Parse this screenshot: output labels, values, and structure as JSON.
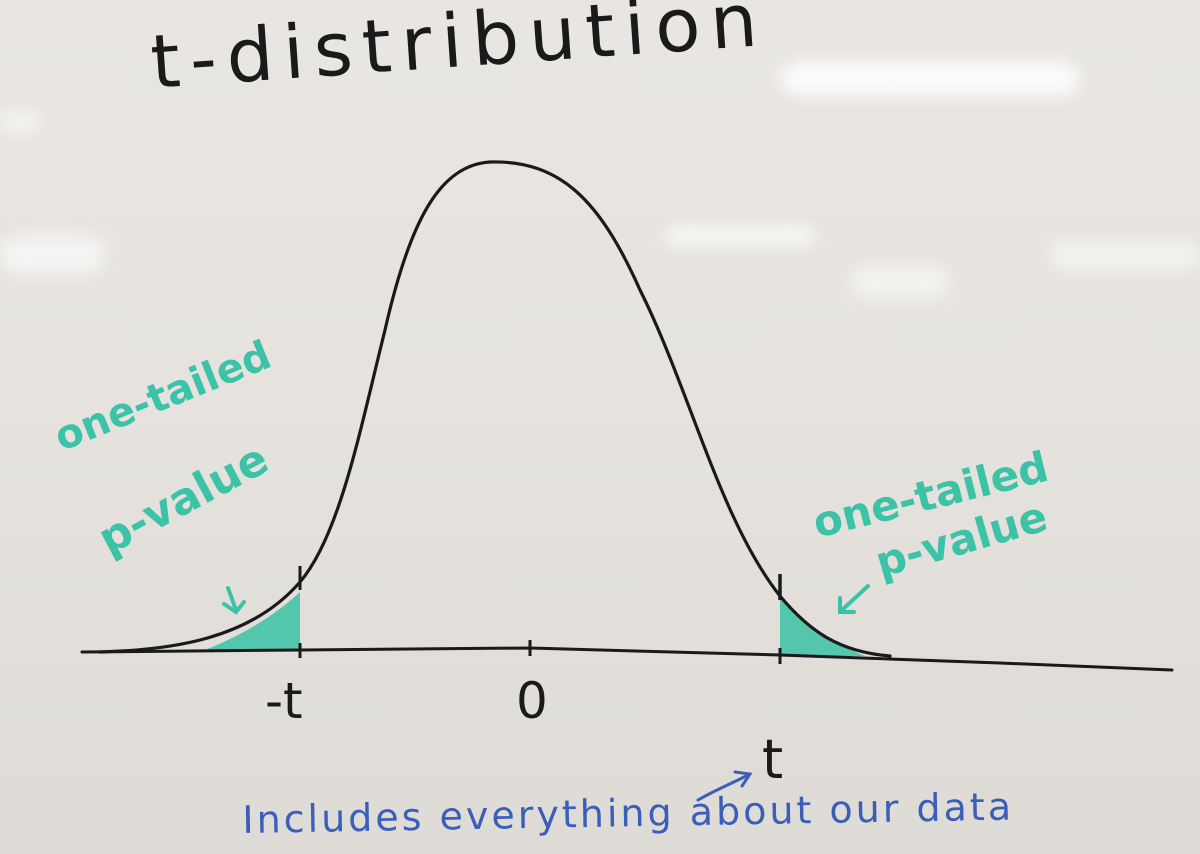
{
  "whiteboard": {
    "title": "t-distribution",
    "left_annotation": {
      "line1": "one-tailed",
      "line2": "p-value"
    },
    "right_annotation": {
      "line1": "one-tailed",
      "line2": "p-value"
    },
    "axis_labels": {
      "negative_t": "-t",
      "zero": "0",
      "positive_t": "t",
      "statistic": "t"
    },
    "footnote": "Includes everything about our data",
    "colors": {
      "curve_ink": "#1a1a1a",
      "shade": "#3cc2a6",
      "note_ink": "#3b5fb8"
    }
  }
}
